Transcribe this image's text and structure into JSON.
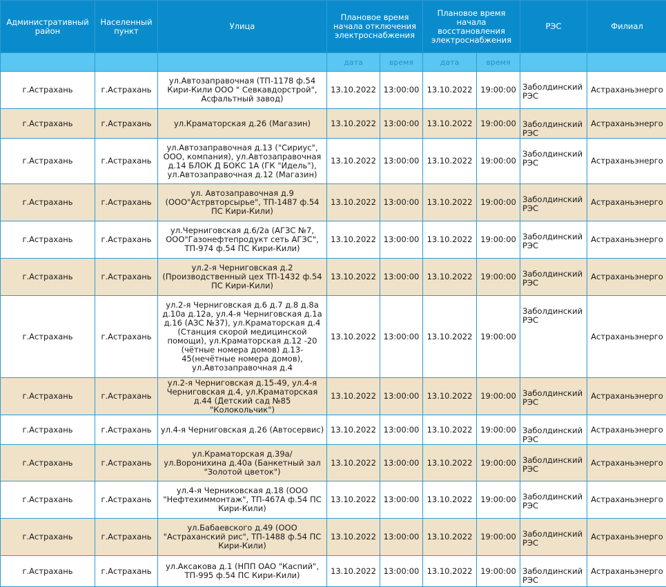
{
  "header": {
    "district": "Административный район",
    "locality": "Населенный пункт",
    "street": "Улица",
    "off_time": "Плановое время начала отключения электроснабжения",
    "on_time": "Плановое время начала восстановления электроснабжения",
    "res": "РЭС",
    "branch": "Филиал",
    "date": "дата",
    "time": "время"
  },
  "rows": [
    {
      "district": "г.Астрахань",
      "locality": "г.Астрахань",
      "street": "ул.Автозаправочная (ТП-1178 ф.54 Кири-Кили ООО \" Севкавдорстрой\", Асфальтный завод)",
      "off_date": "13.10.2022",
      "off_time": "13:00:00",
      "on_date": "13.10.2022",
      "on_time": "19:00:00",
      "res": "Заболдинский РЭС",
      "branch": "Астраханьэнерго"
    },
    {
      "district": "г.Астрахань",
      "locality": "г.Астрахань",
      "street": "ул.Краматорская д.26 (Магазин)",
      "off_date": "13.10.2022",
      "off_time": "13:00:00",
      "on_date": "13.10.2022",
      "on_time": "19:00:00",
      "res": "Заболдинский РЭС",
      "branch": "Астраханьэнерго"
    },
    {
      "district": "г.Астрахань",
      "locality": "г.Астрахань",
      "street": "ул.Автозаправочная д.13 (\"Сириус\", ООО, компания), ул.Автозаправочная д.14 БЛОК Д БОКС 1А (ГК \"Идель\"), ул.Автозаправочная д.12 (Магазин)",
      "off_date": "13.10.2022",
      "off_time": "13:00:00",
      "on_date": "13.10.2022",
      "on_time": "19:00:00",
      "res": "Заболдинский РЭС",
      "branch": "Астраханьэнерго"
    },
    {
      "district": "г.Астрахань",
      "locality": "г.Астрахань",
      "street": "ул. Автозаправочная д.9 (ООО\"Астрвторсырье\", ТП-1487 ф.54 ПС Кири-Кили)",
      "off_date": "13.10.2022",
      "off_time": "13:00:00",
      "on_date": "13.10.2022",
      "on_time": "19:00:00",
      "res": "Заболдинский РЭС",
      "branch": "Астраханьэнерго"
    },
    {
      "district": "г.Астрахань",
      "locality": "г.Астрахань",
      "street": "ул.Черниговская д.6/2а (АГЗС №7, ООО\"Газонефтепродукт сеть АГЗС\", ТП-974 ф.54 ПС Кири-Кили)",
      "off_date": "13.10.2022",
      "off_time": "13:00:00",
      "on_date": "13.10.2022",
      "on_time": "19:00:00",
      "res": "Заболдинский РЭС",
      "branch": "Астраханьэнерго"
    },
    {
      "district": "г.Астрахань",
      "locality": "г.Астрахань",
      "street": "ул.2-я Черниговская д.2 (Производственный цех ТП-1432 ф.54 ПС Кири-Кили)",
      "off_date": "13.10.2022",
      "off_time": "13:00:00",
      "on_date": "13.10.2022",
      "on_time": "19:00:00",
      "res": "Заболдинский РЭС",
      "branch": "Астраханьэнерго"
    },
    {
      "district": "г.Астрахань",
      "locality": "г.Астрахань",
      "street": "ул.2-я Черниговская д.6 д.7 д.8 д.8а д.10а д.12а, ул.4-я Черниговская д.1а д.16 (АЗС №37), ул.Краматорская д.4 (Станция скорой медицинской помощи), ул.Краматорская д.12 -20 (чётные номера домов) д.13-45(нечётные номера домов), ул.Автозаправочная д.4",
      "off_date": "13.10.2022",
      "off_time": "13:00:00",
      "on_date": "13.10.2022",
      "on_time": "19:00:00",
      "res": "Заболдинский РЭС",
      "branch": "Астраханьэнерго"
    },
    {
      "district": "г.Астрахань",
      "locality": "г.Астрахань",
      "street": "ул.2-я Черниговская д.15-49, ул.4-я Черниговская д.4, ул.Краматорская д.44 (Детский сад №85 \"Колокольчик\")",
      "off_date": "13.10.2022",
      "off_time": "13:00:00",
      "on_date": "13.10.2022",
      "on_time": "19:00:00",
      "res": "Заболдинский РЭС",
      "branch": "Астраханьэнерго"
    },
    {
      "district": "г.Астрахань",
      "locality": "г.Астрахань",
      "street": "ул.4-я Черниговская д.26 (Автосервис)",
      "off_date": "13.10.2022",
      "off_time": "13:00:00",
      "on_date": "13.10.2022",
      "on_time": "19:00:00",
      "res": "Заболдинский РЭС",
      "branch": "Астраханьэнерго"
    },
    {
      "district": "г.Астрахань",
      "locality": "г.Астрахань",
      "street": "ул.Краматорская д.39а/ ул.Воронихина д.40а (Банкетный зал \"Золотой цветок\")",
      "off_date": "13.10.2022",
      "off_time": "13:00:00",
      "on_date": "13.10.2022",
      "on_time": "19:00:00",
      "res": "Заболдинский РЭС",
      "branch": "Астраханьэнерго"
    },
    {
      "district": "г.Астрахань",
      "locality": "г.Астрахань",
      "street": "ул.4-я Черниковская д.18 (ООО \"Нефтехиммонтаж\", ТП-467А ф.54 ПС Кири-Кили)",
      "off_date": "13.10.2022",
      "off_time": "13:00:00",
      "on_date": "13.10.2022",
      "on_time": "19:00:00",
      "res": "Заболдинский РЭС",
      "branch": "Астраханьэнерго"
    },
    {
      "district": "г.Астрахань",
      "locality": "г.Астрахань",
      "street": "ул.Бабаевского д.49 (ООО \"Астраханский рис\", ТП-1488 ф.54 ПС Кири-Кили)",
      "off_date": "13.10.2022",
      "off_time": "13:00:00",
      "on_date": "13.10.2022",
      "on_time": "19:00:00",
      "res": "Заболдинский РЭС",
      "branch": "Астраханьэнерго"
    },
    {
      "district": "г.Астрахань",
      "locality": "г.Астрахань",
      "street": "ул.Аксакова д.1 (НПП ОАО \"Каспий\", ТП-995 ф.54 ПС Кири-Кили)",
      "off_date": "13.10.2022",
      "off_time": "13:00:00",
      "on_date": "13.10.2022",
      "on_time": "19:00:00",
      "res": "Заболдинский РЭС",
      "branch": "Астраханьэнерго"
    }
  ]
}
